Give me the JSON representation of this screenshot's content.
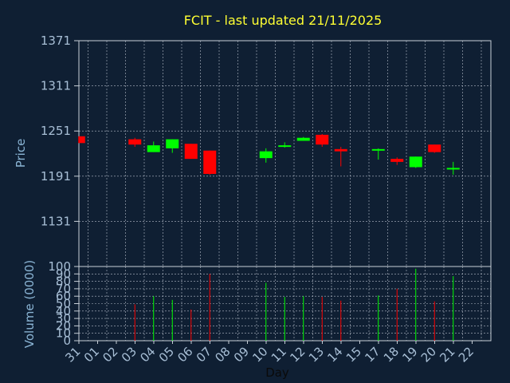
{
  "colors": {
    "background": "#0f1f33",
    "frame": "#c8d0d8",
    "grid": "#b4bcc8",
    "title": "#ffff33",
    "label": "#8ab4d4",
    "tick": "#a8bfd6",
    "up": "#00ff00",
    "down": "#ff0000"
  },
  "chart_data": [
    {
      "type": "candlestick",
      "title": "FCIT - last updated 21/11/2025",
      "ylabel": "Price",
      "ylim": [
        1071,
        1371
      ],
      "yticks": [
        1371,
        1311,
        1251,
        1191,
        1131
      ],
      "grid": true,
      "categories": [
        "31",
        "01",
        "02",
        "03",
        "04",
        "05",
        "06",
        "07",
        "08",
        "09",
        "10",
        "11",
        "12",
        "13",
        "14",
        "15",
        "17",
        "18",
        "19",
        "20",
        "21",
        "22"
      ],
      "candles": [
        {
          "day": "31",
          "open": 1244,
          "high": 1244,
          "low": 1235,
          "close": 1235,
          "up": false
        },
        {
          "day": "03",
          "open": 1240,
          "high": 1242,
          "low": 1230,
          "close": 1233,
          "up": false
        },
        {
          "day": "04",
          "open": 1223,
          "high": 1237,
          "low": 1223,
          "close": 1232,
          "up": true
        },
        {
          "day": "05",
          "open": 1228,
          "high": 1240,
          "low": 1222,
          "close": 1240,
          "up": true
        },
        {
          "day": "06",
          "open": 1234,
          "high": 1234,
          "low": 1214,
          "close": 1214,
          "up": false
        },
        {
          "day": "07",
          "open": 1225,
          "high": 1225,
          "low": 1193,
          "close": 1194,
          "up": false
        },
        {
          "day": "10",
          "open": 1215,
          "high": 1228,
          "low": 1209,
          "close": 1224,
          "up": true
        },
        {
          "day": "11",
          "open": 1230,
          "high": 1236,
          "low": 1229,
          "close": 1232,
          "up": true
        },
        {
          "day": "12",
          "open": 1238,
          "high": 1243,
          "low": 1238,
          "close": 1242,
          "up": true
        },
        {
          "day": "13",
          "open": 1246,
          "high": 1247,
          "low": 1230,
          "close": 1233,
          "up": false
        },
        {
          "day": "14",
          "open": 1227,
          "high": 1230,
          "low": 1204,
          "close": 1224,
          "up": false
        },
        {
          "day": "17",
          "open": 1225,
          "high": 1228,
          "low": 1213,
          "close": 1227,
          "up": true
        },
        {
          "day": "18",
          "open": 1214,
          "high": 1216,
          "low": 1206,
          "close": 1210,
          "up": false
        },
        {
          "day": "19",
          "open": 1203,
          "high": 1217,
          "low": 1202,
          "close": 1217,
          "up": true
        },
        {
          "day": "20",
          "open": 1233,
          "high": 1233,
          "low": 1222,
          "close": 1223,
          "up": false
        },
        {
          "day": "21",
          "open": 1201,
          "high": 1210,
          "low": 1193,
          "close": 1202,
          "up": true
        }
      ]
    },
    {
      "type": "bar",
      "xlabel": "Day",
      "ylabel": "Volume (0000)",
      "ylim": [
        0,
        100
      ],
      "yticks": [
        100,
        90,
        80,
        70,
        60,
        50,
        40,
        30,
        20,
        10,
        0
      ],
      "grid": true,
      "categories": [
        "31",
        "01",
        "02",
        "03",
        "04",
        "05",
        "06",
        "07",
        "08",
        "09",
        "10",
        "11",
        "12",
        "13",
        "14",
        "15",
        "17",
        "18",
        "19",
        "20",
        "21",
        "22"
      ],
      "bars": [
        {
          "day": "03",
          "value": 49,
          "up": false
        },
        {
          "day": "04",
          "value": 60,
          "up": true
        },
        {
          "day": "05",
          "value": 55,
          "up": true
        },
        {
          "day": "06",
          "value": 42,
          "up": false
        },
        {
          "day": "07",
          "value": 90,
          "up": false
        },
        {
          "day": "10",
          "value": 78,
          "up": true
        },
        {
          "day": "11",
          "value": 59,
          "up": true
        },
        {
          "day": "12",
          "value": 60,
          "up": true
        },
        {
          "day": "13",
          "value": 59,
          "up": false
        },
        {
          "day": "14",
          "value": 54,
          "up": false
        },
        {
          "day": "17",
          "value": 61,
          "up": true
        },
        {
          "day": "18",
          "value": 70,
          "up": false
        },
        {
          "day": "19",
          "value": 97,
          "up": true
        },
        {
          "day": "20",
          "value": 53,
          "up": false
        },
        {
          "day": "21",
          "value": 87,
          "up": true
        }
      ]
    }
  ]
}
